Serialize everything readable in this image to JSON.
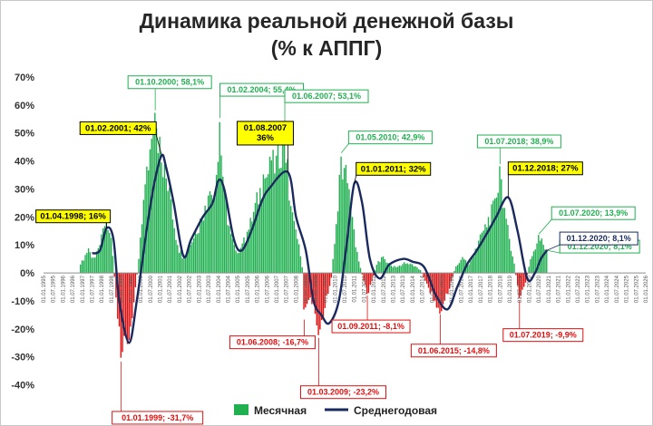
{
  "chart_data": {
    "type": "bar",
    "title_line1": "Динамика реальной денежной базы",
    "title_line2": "(% к АППГ)",
    "xlabel": "",
    "ylabel": "",
    "ylim": [
      -45,
      70
    ],
    "y_ticks": [
      70,
      60,
      50,
      40,
      30,
      20,
      10,
      0,
      -10,
      -20,
      -30,
      -40
    ],
    "y_tick_labels": [
      "70%",
      "60%",
      "50%",
      "40%",
      "30%",
      "20%",
      "10%",
      "0%",
      "-10%",
      "-20%",
      "-30%",
      "-40%"
    ],
    "x_start_year": 1995,
    "x_end_year": 2026,
    "x_tick_labels": [
      "01.01.1995",
      "01.07.1995",
      "01.01.1996",
      "01.07.1996",
      "01.01.1997",
      "01.07.1997",
      "01.01.1998",
      "01.07.1998",
      "01.01.1999",
      "01.07.1999",
      "01.01.2000",
      "01.07.2000",
      "01.01.2001",
      "01.07.2001",
      "01.01.2002",
      "01.07.2002",
      "01.01.2003",
      "01.07.2003",
      "01.01.2004",
      "01.07.2004",
      "01.01.2005",
      "01.07.2005",
      "01.01.2006",
      "01.07.2006",
      "01.01.2007",
      "01.07.2007",
      "01.01.2008",
      "01.07.2008",
      "01.01.2009",
      "01.07.2009",
      "01.01.2010",
      "01.07.2010",
      "01.01.2011",
      "01.07.2011",
      "01.01.2012",
      "01.07.2012",
      "01.01.2013",
      "01.07.2013",
      "01.01.2014",
      "01.07.2014",
      "01.01.2015",
      "01.07.2015",
      "01.01.2016",
      "01.07.2016",
      "01.01.2017",
      "01.07.2017",
      "01.01.2018",
      "01.07.2018",
      "01.01.2019",
      "01.07.2019",
      "01.01.2020",
      "01.07.2020",
      "01.01.2021",
      "01.07.2021",
      "01.01.2022",
      "01.07.2022",
      "01.01.2023",
      "01.07.2023",
      "01.01.2024",
      "01.07.2024",
      "01.01.2025",
      "01.07.2025",
      "01.01.2026"
    ],
    "monthly_anchors": [
      [
        1996.9,
        3
      ],
      [
        1997.3,
        9
      ],
      [
        1997.6,
        5
      ],
      [
        1997.9,
        10
      ],
      [
        1998.2,
        20
      ],
      [
        1998.5,
        12
      ],
      [
        1998.8,
        -15
      ],
      [
        1999.0,
        -31.7
      ],
      [
        1999.3,
        -26
      ],
      [
        1999.6,
        -15
      ],
      [
        1999.9,
        5
      ],
      [
        2000.2,
        30
      ],
      [
        2000.5,
        45
      ],
      [
        2000.75,
        58.1
      ],
      [
        2001.0,
        48
      ],
      [
        2001.2,
        40
      ],
      [
        2001.6,
        25
      ],
      [
        2001.9,
        10
      ],
      [
        2002.2,
        6
      ],
      [
        2002.5,
        10
      ],
      [
        2002.8,
        15
      ],
      [
        2003.1,
        20
      ],
      [
        2003.5,
        28
      ],
      [
        2003.9,
        35
      ],
      [
        2004.08,
        55.4
      ],
      [
        2004.3,
        30
      ],
      [
        2004.6,
        15
      ],
      [
        2004.9,
        8
      ],
      [
        2005.2,
        10
      ],
      [
        2005.5,
        15
      ],
      [
        2005.9,
        25
      ],
      [
        2006.3,
        35
      ],
      [
        2006.7,
        40
      ],
      [
        2007.0,
        42
      ],
      [
        2007.42,
        53.1
      ],
      [
        2007.7,
        25
      ],
      [
        2008.0,
        15
      ],
      [
        2008.3,
        5
      ],
      [
        2008.42,
        -16.7
      ],
      [
        2008.7,
        -8
      ],
      [
        2009.0,
        -15
      ],
      [
        2009.17,
        -23.2
      ],
      [
        2009.5,
        -12
      ],
      [
        2009.8,
        -3
      ],
      [
        2010.1,
        20
      ],
      [
        2010.33,
        42.9
      ],
      [
        2010.6,
        38
      ],
      [
        2010.9,
        20
      ],
      [
        2011.2,
        5
      ],
      [
        2011.67,
        -8.1
      ],
      [
        2011.9,
        -3
      ],
      [
        2012.2,
        4
      ],
      [
        2012.5,
        6
      ],
      [
        2012.8,
        3
      ],
      [
        2013.2,
        2
      ],
      [
        2013.6,
        4
      ],
      [
        2014.0,
        3
      ],
      [
        2014.4,
        1
      ],
      [
        2014.8,
        -5
      ],
      [
        2015.2,
        -12
      ],
      [
        2015.42,
        -14.8
      ],
      [
        2015.8,
        -8
      ],
      [
        2016.2,
        2
      ],
      [
        2016.6,
        6
      ],
      [
        2016.9,
        3
      ],
      [
        2017.2,
        8
      ],
      [
        2017.6,
        15
      ],
      [
        2017.9,
        20
      ],
      [
        2018.2,
        25
      ],
      [
        2018.5,
        38.9
      ],
      [
        2018.8,
        20
      ],
      [
        2019.2,
        5
      ],
      [
        2019.5,
        -9.9
      ],
      [
        2019.8,
        -4
      ],
      [
        2020.1,
        6
      ],
      [
        2020.5,
        13.9
      ],
      [
        2020.92,
        8.1
      ]
    ],
    "avg_anchors": [
      [
        1997.5,
        7
      ],
      [
        1997.9,
        8
      ],
      [
        1998.25,
        16
      ],
      [
        1998.6,
        12
      ],
      [
        1998.9,
        -10
      ],
      [
        1999.4,
        -25
      ],
      [
        1999.8,
        -10
      ],
      [
        2000.3,
        15
      ],
      [
        2000.7,
        32
      ],
      [
        2001.08,
        42
      ],
      [
        2001.3,
        38
      ],
      [
        2001.7,
        25
      ],
      [
        2002.2,
        6
      ],
      [
        2002.6,
        12
      ],
      [
        2003.2,
        20
      ],
      [
        2003.7,
        25
      ],
      [
        2004.0,
        33
      ],
      [
        2004.3,
        30
      ],
      [
        2004.8,
        12
      ],
      [
        2005.2,
        8
      ],
      [
        2005.7,
        15
      ],
      [
        2006.2,
        25
      ],
      [
        2006.6,
        30
      ],
      [
        2007.58,
        36
      ],
      [
        2008.0,
        20
      ],
      [
        2008.5,
        8
      ],
      [
        2008.9,
        -10
      ],
      [
        2009.3,
        -15
      ],
      [
        2009.7,
        -18
      ],
      [
        2010.2,
        -10
      ],
      [
        2010.6,
        10
      ],
      [
        2011.0,
        32
      ],
      [
        2011.4,
        25
      ],
      [
        2011.8,
        5
      ],
      [
        2012.3,
        -2
      ],
      [
        2012.8,
        3
      ],
      [
        2013.5,
        5
      ],
      [
        2014.0,
        4
      ],
      [
        2014.6,
        2
      ],
      [
        2015.2,
        -8
      ],
      [
        2015.8,
        -13
      ],
      [
        2016.3,
        -5
      ],
      [
        2016.8,
        3
      ],
      [
        2017.3,
        8
      ],
      [
        2017.9,
        15
      ],
      [
        2018.3,
        20
      ],
      [
        2018.92,
        27
      ],
      [
        2019.4,
        15
      ],
      [
        2019.9,
        -2
      ],
      [
        2020.3,
        0
      ],
      [
        2020.6,
        5
      ],
      [
        2020.92,
        8.1
      ]
    ],
    "series": [
      {
        "name": "Месячная",
        "color": "#20b050"
      },
      {
        "name": "Среднегодовая",
        "color": "#1a2a5e"
      }
    ],
    "negative_bar_color": "#e01010",
    "annotations": [
      {
        "text": "01.10.2000; 58,1%",
        "x": 2000.75,
        "y": 58.1,
        "style": "green"
      },
      {
        "text": "01.02.2004; 55,4%",
        "x": 2004.08,
        "y": 55.4,
        "style": "green"
      },
      {
        "text": "01.06.2007; 53,1%",
        "x": 2007.42,
        "y": 53.1,
        "style": "green"
      },
      {
        "text": "01.05.2010; 42,9%",
        "x": 2010.33,
        "y": 42.9,
        "style": "green"
      },
      {
        "text": "01.07.2018; 38,9%",
        "x": 2018.5,
        "y": 38.9,
        "style": "green"
      },
      {
        "text": "01.07.2020; 13,9%",
        "x": 2020.5,
        "y": 13.9,
        "style": "green"
      },
      {
        "text": "01.12.2020; 8,1%",
        "x": 2020.92,
        "y": 8.1,
        "style": "green"
      },
      {
        "text": "01.02.2001; 42%",
        "x": 2001.08,
        "y": 42,
        "style": "yellow"
      },
      {
        "text": "01.04.1998; 16%",
        "x": 1998.25,
        "y": 16,
        "style": "yellow"
      },
      {
        "text": "01.08.2007\n36%",
        "x": 2007.58,
        "y": 36,
        "style": "yellow"
      },
      {
        "text": "01.01.2011; 32%",
        "x": 2011.0,
        "y": 32,
        "style": "yellow"
      },
      {
        "text": "01.12.2018; 27%",
        "x": 2018.92,
        "y": 27,
        "style": "yellow"
      },
      {
        "text": "01.12.2020; 8,1%",
        "x": 2020.92,
        "y": 8.1,
        "style": "navy"
      },
      {
        "text": "01.01.1999; -31,7%",
        "x": 1999.0,
        "y": -31.7,
        "style": "red"
      },
      {
        "text": "01.06.2008; -16,7%",
        "x": 2008.42,
        "y": -16.7,
        "style": "red"
      },
      {
        "text": "01.03.2009; -23,2%",
        "x": 2009.17,
        "y": -23.2,
        "style": "red"
      },
      {
        "text": "01.09.2011; -8,1%",
        "x": 2011.67,
        "y": -8.1,
        "style": "red"
      },
      {
        "text": "01.06.2015; -14,8%",
        "x": 2015.42,
        "y": -14.8,
        "style": "red"
      },
      {
        "text": "01.07.2019; -9,9%",
        "x": 2019.5,
        "y": -9.9,
        "style": "red"
      }
    ],
    "legend_position": "bottom",
    "grid": false
  }
}
